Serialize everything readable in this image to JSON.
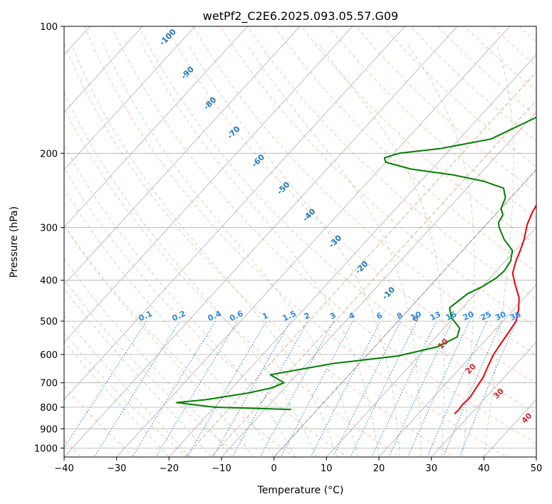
{
  "chart_data": {
    "type": "line",
    "title": "wetPf2_C2E6.2025.093.05.57.G09",
    "xlabel": "Temperature (°C)",
    "ylabel": "Pressure (hPa)",
    "xlim": [
      -40,
      50
    ],
    "ylim": [
      1050,
      100
    ],
    "y_scale": "log",
    "x_ticks": [
      "−40",
      "−30",
      "−20",
      "−10",
      "0",
      "10",
      "20",
      "30",
      "40",
      "50"
    ],
    "x_tick_values": [
      -40,
      -30,
      -20,
      -10,
      0,
      10,
      20,
      30,
      40,
      50
    ],
    "y_ticks": [
      "100",
      "200",
      "300",
      "400",
      "500",
      "600",
      "700",
      "800",
      "900",
      "1000"
    ],
    "y_tick_values": [
      100,
      200,
      300,
      400,
      500,
      600,
      700,
      800,
      900,
      1000
    ],
    "grid": true,
    "skew": "skew-T log-P",
    "colors": {
      "temperature": "#e8000b",
      "dewpoint": "#008000",
      "grid": "#b0b0b0",
      "dry_adiabat": "#ff8c69",
      "moist_adiabat": "#90c890",
      "mixing_ratio": "#1f7fd9",
      "isotherm": "#808080",
      "dgz": "#d2b48c"
    },
    "series": [
      {
        "x": [
          3.0,
          1.3,
          0.8,
          0.9,
          0.7,
          0.8,
          1.5,
          3.0,
          5.0,
          7.0,
          8.3,
          8.8,
          8.5,
          7.2,
          6.1,
          6.0,
          6.6,
          7.8,
          9.8,
          11.0,
          12.0,
          13.5,
          16.0,
          19.0,
          21.0,
          22.5,
          23.0,
          23.5,
          24.0,
          25.0,
          26.0,
          26.5,
          27.0,
          26.8,
          27.0,
          26.9
        ],
        "y": [
          100,
          110,
          120,
          130,
          140,
          150,
          160,
          170,
          180,
          190,
          200,
          215,
          225,
          240,
          250,
          260,
          275,
          295,
          320,
          340,
          360,
          385,
          410,
          440,
          470,
          500,
          530,
          565,
          600,
          640,
          680,
          720,
          760,
          790,
          810,
          830
        ],
        "color": "#e8000b"
      },
      {
        "x": [
          0.5,
          -1.0,
          -2.5,
          -3.5,
          -4.5,
          -6.0,
          -8.0,
          -14.0,
          -22.0,
          -29.0,
          -31.0,
          -30.0,
          -24.0,
          -15.0,
          -8.0,
          -3.0,
          -1.0,
          0.0,
          1.5,
          2.0,
          3.0,
          6.0,
          9.5,
          11.0,
          11.5,
          11.2,
          10.0,
          8.5,
          7.5,
          9.5,
          13.0,
          14.0,
          12.0,
          6.0,
          -5.0,
          -15.0,
          -11.0,
          -12.5,
          -16.0,
          -23.0,
          -28.0,
          -20.0,
          -5.0
        ],
        "y": [
          100,
          105,
          110,
          115,
          125,
          140,
          160,
          185,
          195,
          200,
          205,
          210,
          218,
          225,
          233,
          242,
          255,
          270,
          280,
          292,
          300,
          320,
          340,
          360,
          380,
          395,
          415,
          430,
          465,
          490,
          520,
          545,
          575,
          605,
          630,
          670,
          700,
          720,
          740,
          768,
          780,
          800,
          810
        ],
        "color": "#008000"
      }
    ],
    "dry_adiabat_labels": [
      "-100",
      "-90",
      "-80",
      "-70",
      "-60",
      "-50",
      "-40",
      "-30",
      "-20",
      "-10",
      "0",
      "10",
      "20",
      "30",
      "40"
    ],
    "mixing_ratio_labels": [
      "0.1",
      "0.2",
      "0.4",
      "0.6",
      "1",
      "1.5",
      "2",
      "3",
      "4",
      "6",
      "8",
      "10",
      "13",
      "16",
      "20",
      "25",
      "30",
      "36"
    ]
  }
}
